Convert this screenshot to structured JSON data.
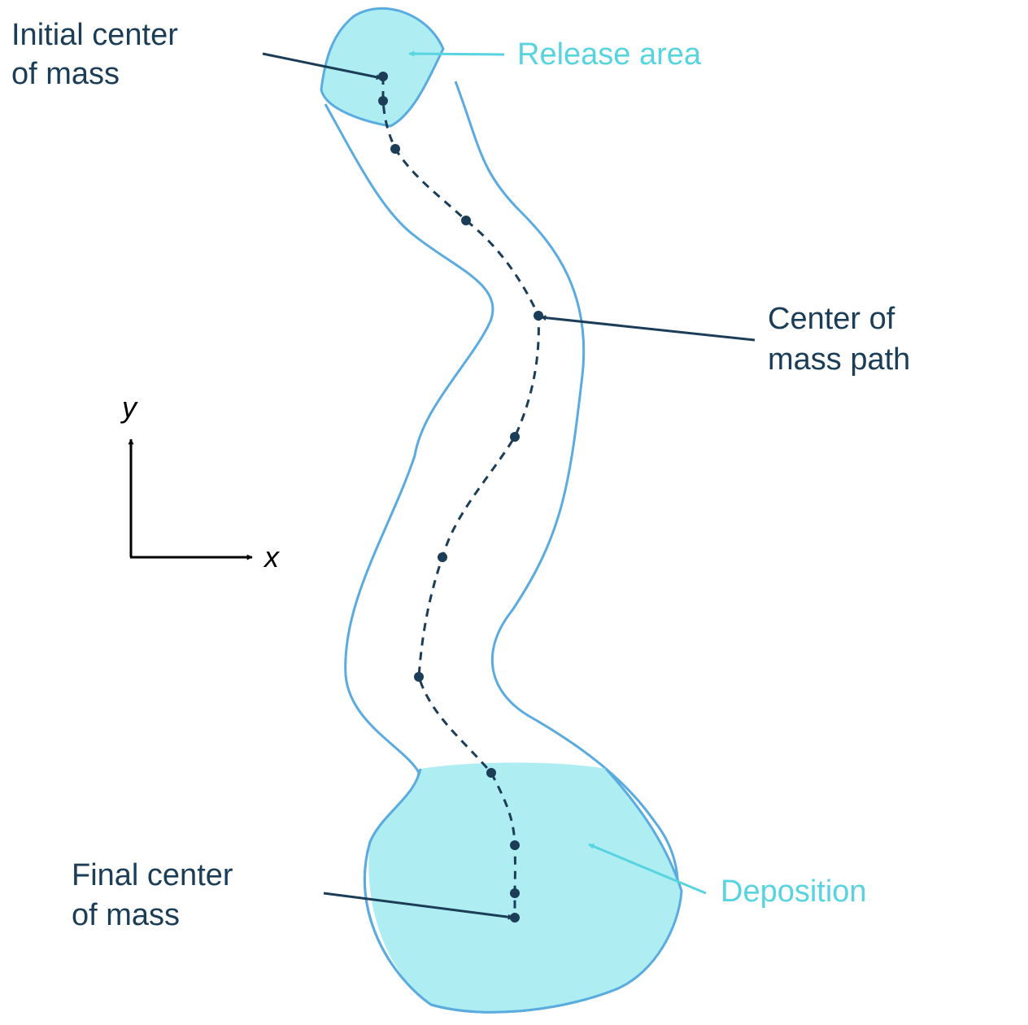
{
  "labels": {
    "initial_line1": "Initial center",
    "initial_line2": "of mass",
    "release": "Release area",
    "path_line1": "Center of",
    "path_line2": "mass path",
    "final_line1": "Final center",
    "final_line2": "of mass",
    "deposition": "Deposition",
    "axis_x": "x",
    "axis_y": "y"
  },
  "colors": {
    "outline": "#5aabdf",
    "fill": "#aeeef3",
    "dark": "#1b3d57",
    "cyan_label": "#57d4e0",
    "axis": "#000000"
  }
}
